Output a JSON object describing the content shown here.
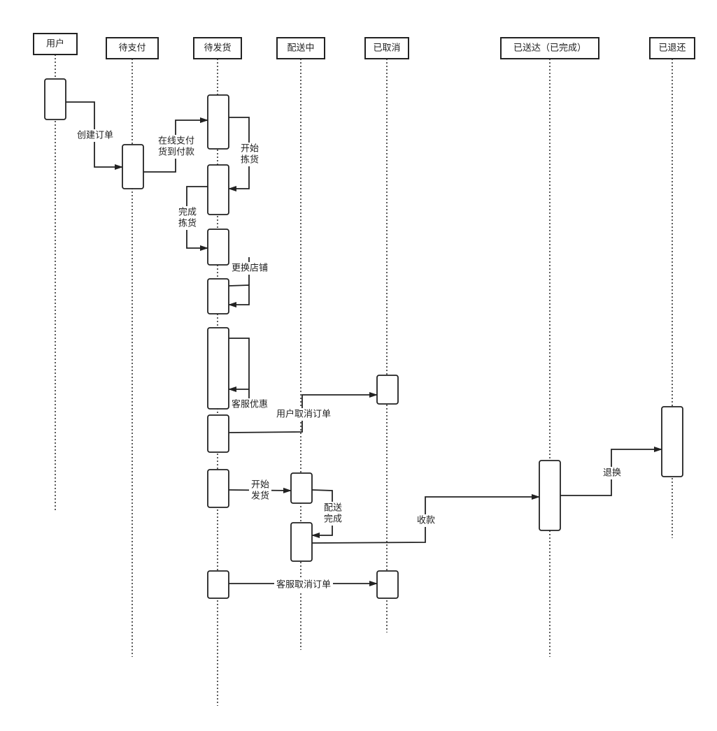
{
  "lanes": [
    {
      "id": "user",
      "label": "用户"
    },
    {
      "id": "pending_pay",
      "label": "待支付"
    },
    {
      "id": "pending_ship",
      "label": "待发货"
    },
    {
      "id": "delivering",
      "label": "配送中"
    },
    {
      "id": "cancelled",
      "label": "已取消"
    },
    {
      "id": "delivered",
      "label": "已送达（已完成）"
    },
    {
      "id": "returned",
      "label": "已退还"
    }
  ],
  "messages": [
    {
      "id": "create-order",
      "lines": [
        "创建订单"
      ]
    },
    {
      "id": "pay",
      "lines": [
        "在线支付",
        "货到付款"
      ]
    },
    {
      "id": "start-pick",
      "lines": [
        "开始",
        "拣货"
      ]
    },
    {
      "id": "finish-pick",
      "lines": [
        "完成",
        "拣货"
      ]
    },
    {
      "id": "change-store",
      "lines": [
        "更换店铺"
      ]
    },
    {
      "id": "cs-discount",
      "lines": [
        "客服优惠"
      ]
    },
    {
      "id": "user-cancel",
      "lines": [
        "用户取消订单"
      ]
    },
    {
      "id": "start-ship",
      "lines": [
        "开始",
        "发货"
      ]
    },
    {
      "id": "delivery-done",
      "lines": [
        "配送",
        "完成"
      ]
    },
    {
      "id": "collect",
      "lines": [
        "收款"
      ]
    },
    {
      "id": "return",
      "lines": [
        "退换"
      ]
    },
    {
      "id": "cs-cancel",
      "lines": [
        "客服取消订单"
      ]
    }
  ],
  "colors": {
    "stroke": "#222222",
    "background": "#ffffff"
  }
}
